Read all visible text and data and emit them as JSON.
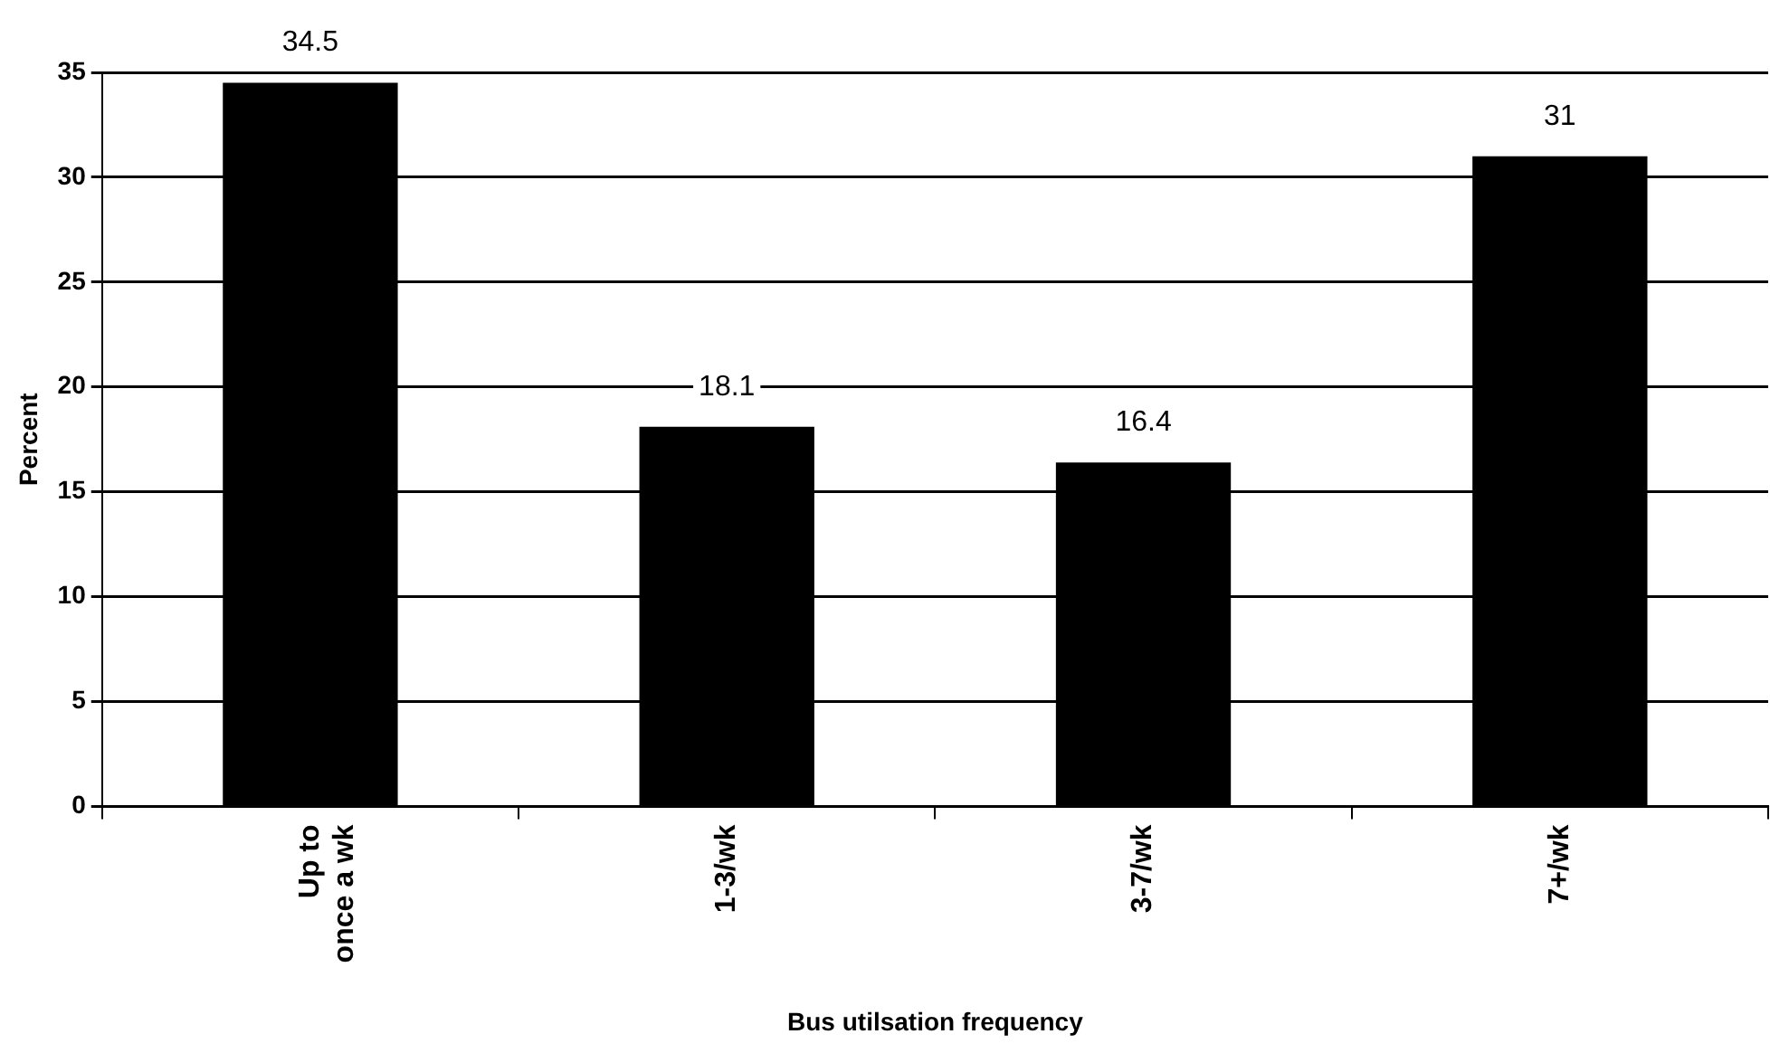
{
  "chart_data": {
    "type": "bar",
    "xlabel": "Bus utilsation frequency",
    "ylabel": "Percent",
    "categories": [
      "Up to once a wk",
      "1-3/wk",
      "3-7/wk",
      "7+/wk"
    ],
    "values": [
      34.5,
      18.1,
      16.4,
      31
    ],
    "color": "#000000",
    "ylim": [
      0,
      35
    ],
    "yticks": [
      0,
      5,
      10,
      15,
      20,
      25,
      30,
      35
    ],
    "grid": "y",
    "data_labels": true
  }
}
